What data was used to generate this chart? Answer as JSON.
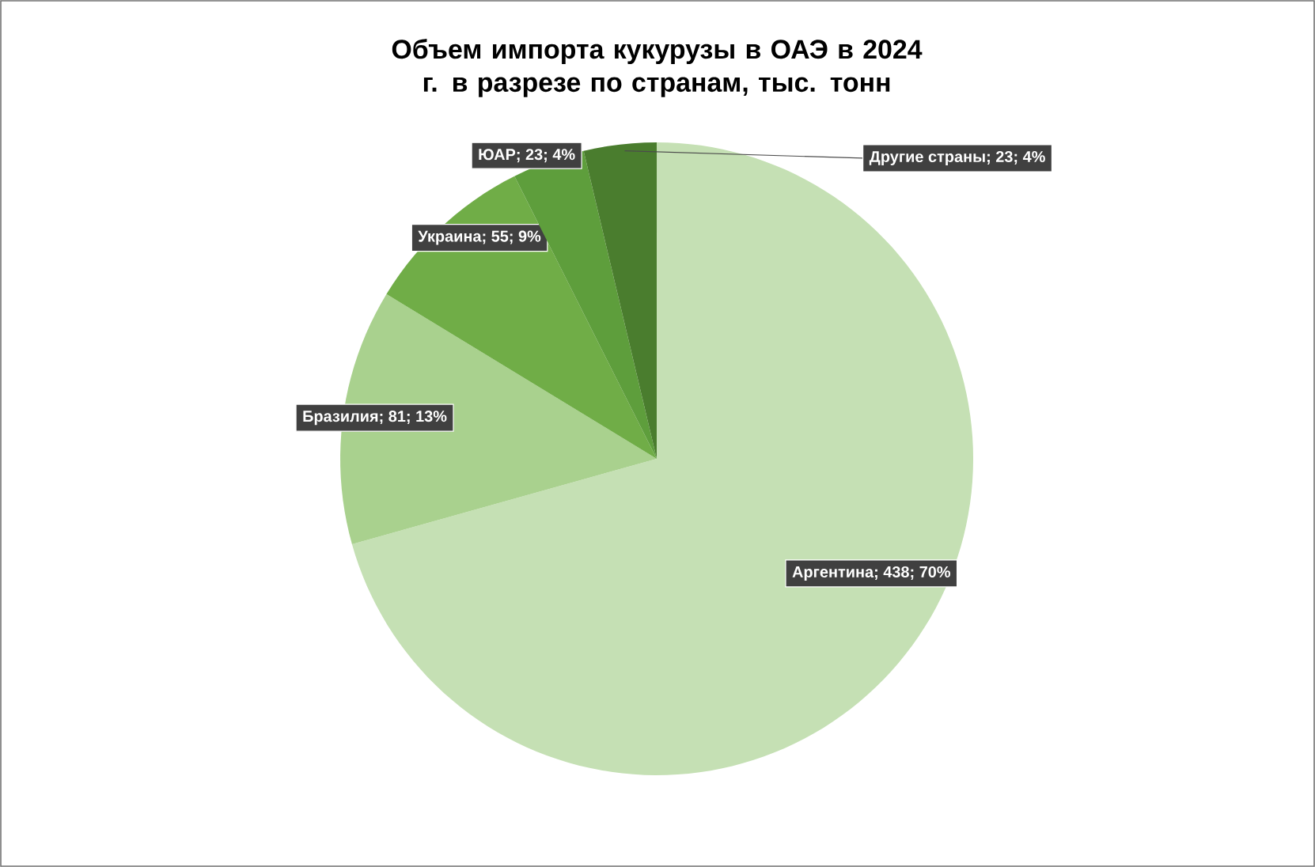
{
  "chart_data": {
    "type": "pie",
    "title": "Объем импорта кукурузы в ОАЭ в 2024 г. в разрезе по странам, тыс. тонн",
    "categories": [
      "Аргентина",
      "Бразилия",
      "Украина",
      "ЮАР",
      "Другие страны"
    ],
    "values": [
      438,
      81,
      55,
      23,
      23
    ],
    "value_labels": [
      "; 438; 70%",
      "; 81; 13%",
      "; 55; 9%",
      "; 23; 4%",
      "; 23; 4%"
    ],
    "colors": [
      "#c5e0b4",
      "#a9d18e",
      "#70ad47",
      "#5e9e3c",
      "#4a7d2e"
    ]
  }
}
